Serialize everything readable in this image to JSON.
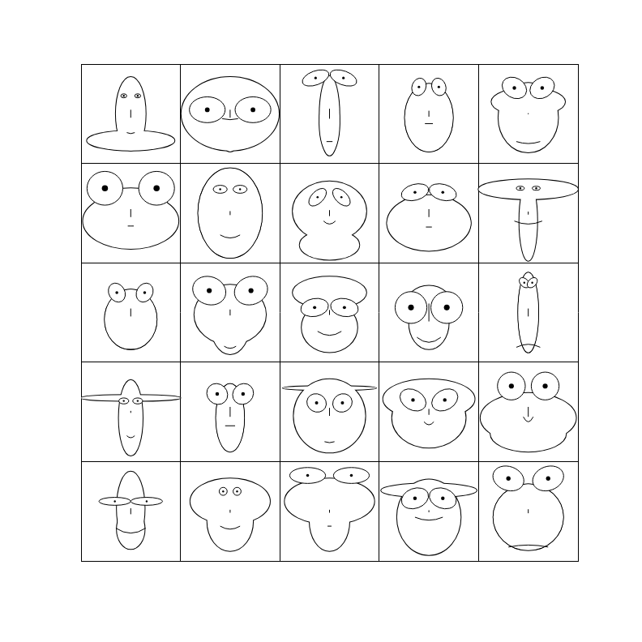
{
  "chart_data": {
    "type": "chernoff",
    "xlim": [
      0,
      5
    ],
    "ylim": [
      0,
      5
    ],
    "xticks": [
      0,
      1,
      2,
      3,
      4,
      5
    ],
    "yticks": [
      0,
      1,
      2,
      3,
      4,
      5
    ],
    "grid": true,
    "tick_labels": false,
    "color": "#000000",
    "faces": [
      {
        "head": [
          15,
          37,
          0
        ],
        "jaw": [
          44,
          10,
          27
        ],
        "eyes": [
          7,
          -18,
          3,
          2,
          0
        ],
        "nose": 8,
        "mouth": [
          19,
          4,
          1
        ]
      },
      {
        "head": [
          49,
          37,
          0
        ],
        "jaw": [
          10,
          22,
          16
        ],
        "eyes": [
          23,
          -4,
          18,
          13,
          0
        ],
        "nose": 8,
        "mouth": [
          5,
          8,
          1
        ]
      },
      {
        "head": [
          10,
          40,
          2
        ],
        "jaw": [
          10,
          30,
          10
        ],
        "eyes": [
          14,
          -36,
          14,
          7,
          20
        ],
        "nose": 10,
        "mouth": [
          28,
          3,
          0
        ]
      },
      {
        "head": [
          24,
          34,
          4
        ],
        "jaw": [
          24,
          34,
          4
        ],
        "eyes": [
          10,
          -27,
          7,
          9,
          -20
        ],
        "nose": 6,
        "mouth": [
          10,
          4,
          0
        ]
      },
      {
        "head": [
          37,
          14,
          -12
        ],
        "jaw": [
          30,
          35,
          4
        ],
        "eyes": [
          14,
          -26,
          13,
          10,
          -30
        ],
        "nose": 1,
        "mouth": [
          28,
          12,
          2
        ]
      },
      {
        "head": [
          40,
          25,
          0
        ],
        "jaw": [
          48,
          28,
          8
        ],
        "eyes": [
          26,
          -25,
          18,
          17,
          0
        ],
        "nose": 8,
        "mouth": [
          13,
          3,
          0
        ]
      },
      {
        "head": [
          32,
          45,
          0
        ],
        "jaw": [
          32,
          45,
          0
        ],
        "eyes": [
          10,
          -24,
          7,
          4,
          0
        ],
        "nose": 4,
        "mouth": [
          22,
          10,
          3
        ]
      },
      {
        "head": [
          37,
          30,
          -2
        ],
        "jaw": [
          30,
          15,
          32
        ],
        "eyes": [
          12,
          -16,
          6,
          11,
          -45
        ],
        "nose": 6,
        "mouth": [
          8,
          6,
          3
        ]
      },
      {
        "head": [
          42,
          22,
          10
        ],
        "jaw": [
          42,
          28,
          10
        ],
        "eyes": [
          14,
          -21,
          14,
          8,
          15
        ],
        "nose": 8,
        "mouth": [
          14,
          3,
          0
        ]
      },
      {
        "head": [
          50,
          10,
          -24
        ],
        "jaw": [
          9,
          40,
          8
        ],
        "eyes": [
          8,
          -25,
          4,
          2,
          0
        ],
        "nose": 3,
        "mouth": [
          8,
          14,
          3
        ]
      },
      {
        "head": [
          26,
          30,
          7
        ],
        "jaw": [
          26,
          30,
          7
        ],
        "eyes": [
          14,
          -20,
          10,
          8,
          -60
        ],
        "nose": 8,
        "mouth": [
          37,
          4,
          0
        ]
      },
      {
        "head": [
          36,
          30,
          2
        ],
        "jaw": [
          20,
          32,
          10
        ],
        "eyes": [
          21,
          -22,
          17,
          14,
          -20
        ],
        "nose": 6,
        "mouth": [
          34,
          6,
          2
        ]
      },
      {
        "head": [
          37,
          16,
          -20
        ],
        "jaw": [
          28,
          25,
          15
        ],
        "eyes": [
          15,
          -5,
          14,
          9,
          10
        ],
        "nose": 5,
        "mouth": [
          19,
          12,
          4
        ]
      },
      {
        "head": [
          24,
          22,
          -5
        ],
        "jaw": [
          20,
          27,
          10
        ],
        "eyes": [
          18,
          -5,
          16,
          16,
          0
        ],
        "nose": 18,
        "mouth": [
          25,
          12,
          5
        ]
      },
      {
        "head": [
          10,
          40,
          0
        ],
        "jaw": [
          10,
          40,
          0
        ],
        "eyes": [
          4,
          -30,
          6,
          4,
          -45
        ],
        "nose": 8,
        "mouth": [
          35,
          12,
          -3
        ]
      },
      {
        "head": [
          50,
          3,
          -14
        ],
        "jaw": [
          12,
          38,
          6
        ],
        "eyes": [
          7,
          -11,
          5,
          3,
          0
        ],
        "nose": 2,
        "mouth": [
          24,
          4,
          2
        ]
      },
      {
        "head": [
          14,
          34,
          6
        ],
        "jaw": [
          14,
          34,
          6
        ],
        "eyes": [
          13,
          -18,
          11,
          10,
          -45
        ],
        "nose": 10,
        "mouth": [
          14,
          5,
          0
        ]
      },
      {
        "head": [
          47,
          2,
          -24
        ],
        "jaw": [
          36,
          37,
          4
        ],
        "eyes": [
          13,
          -9,
          10,
          9,
          -30
        ],
        "nose": 8,
        "mouth": [
          30,
          5,
          1
        ]
      },
      {
        "head": [
          46,
          20,
          -13
        ],
        "jaw": [
          37,
          30,
          6
        ],
        "eyes": [
          16,
          -12,
          14,
          10,
          -30
        ],
        "nose": 6,
        "mouth": [
          10,
          5,
          3
        ]
      },
      {
        "head": [
          48,
          25,
          6
        ],
        "jaw": [
          38,
          18,
          22
        ],
        "eyes": [
          17,
          -26,
          14,
          14,
          -45
        ],
        "nose": 10,
        "mouth": [
          5,
          5,
          5
        ]
      },
      {
        "head": [
          14,
          37,
          -3
        ],
        "jaw": [
          14,
          20,
          18
        ],
        "eyes": [
          16,
          -10,
          16,
          4,
          0
        ],
        "nose": 6,
        "mouth": [
          17,
          15,
          5
        ]
      },
      {
        "head": [
          40,
          23,
          -10
        ],
        "jaw": [
          23,
          30,
          10
        ],
        "eyes": [
          7,
          -20,
          4,
          4,
          0
        ],
        "nose": 3,
        "mouth": [
          15,
          10,
          3
        ]
      },
      {
        "head": [
          45,
          23,
          -10
        ],
        "jaw": [
          20,
          30,
          10
        ],
        "eyes": [
          22,
          -36,
          18,
          8,
          0
        ],
        "nose": 3,
        "mouth": [
          15,
          2,
          0
        ]
      },
      {
        "head": [
          48,
          7,
          -21
        ],
        "jaw": [
          32,
          38,
          6
        ],
        "eyes": [
          14,
          -13,
          14,
          10,
          20
        ],
        "nose": 2,
        "mouth": [
          6,
          14,
          3
        ]
      },
      {
        "head": [
          35,
          33,
          6
        ],
        "jaw": [
          35,
          33,
          6
        ],
        "eyes": [
          20,
          -33,
          16,
          12,
          -20
        ],
        "nose": 4,
        "mouth": [
          36,
          20,
          -2
        ]
      }
    ]
  }
}
